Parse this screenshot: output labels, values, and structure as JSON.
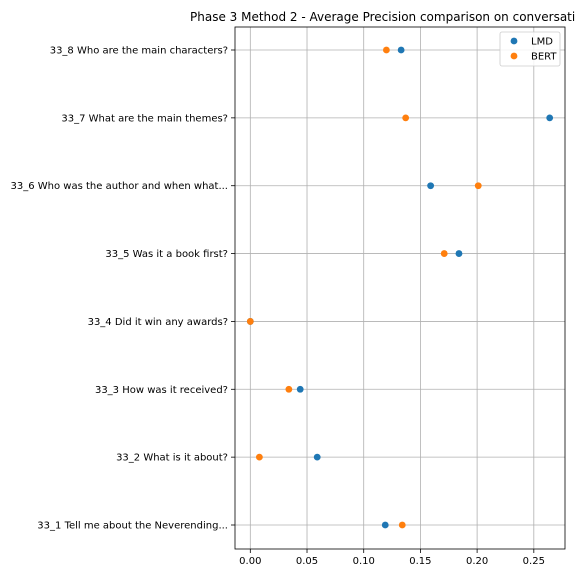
{
  "chart_data": {
    "type": "scatter",
    "title": "Phase 3 Method 2 - Average Precision comparison on conversati",
    "xlabel": "",
    "ylabel": "",
    "categories": [
      "33_1 Tell me about the Neverending...",
      "33_2 What is it about?",
      "33_3 How was it received?",
      "33_4 Did it win any awards?",
      "33_5 Was it a book first?",
      "33_6 Who was the author and when what...",
      "33_7 What are the main themes?",
      "33_8 Who are the main characters?"
    ],
    "series": [
      {
        "name": "LMD",
        "color": "#1f77b4",
        "values": [
          0.119,
          0.059,
          0.044,
          0.0,
          0.184,
          0.159,
          0.264,
          0.133
        ]
      },
      {
        "name": "BERT",
        "color": "#ff7f0e",
        "values": [
          0.134,
          0.008,
          0.034,
          0.0,
          0.171,
          0.201,
          0.137,
          0.12
        ]
      }
    ],
    "xlim": [
      -0.0135,
      0.2775
    ],
    "xticks": [
      0.0,
      0.05,
      0.1,
      0.15,
      0.2,
      0.25
    ],
    "xtick_labels": [
      "0.00",
      "0.05",
      "0.10",
      "0.15",
      "0.20",
      "0.25"
    ],
    "grid": true,
    "legend_position": "upper right"
  }
}
